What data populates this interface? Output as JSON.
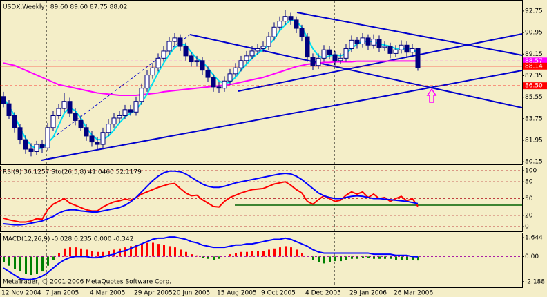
{
  "chart_data": [
    {
      "type": "candlestick",
      "title": "USDX,Weekly",
      "legend_text": "89.60 89.60 87.75 88.02",
      "ylim": [
        79.93,
        93.61
      ],
      "yticks": [
        92.75,
        90.95,
        89.15,
        87.35,
        85.55,
        83.75,
        81.95,
        80.15
      ],
      "grid": false,
      "up_color": "#ffffff",
      "down_color": "#000080",
      "outline_color": "#000080",
      "open": [
        85.6,
        85.0,
        84.0,
        83.0,
        82.0,
        81.2,
        81.0,
        81.6,
        81.3,
        83.0,
        84.0,
        84.6,
        85.2,
        84.2,
        83.6,
        83.0,
        82.3,
        81.8,
        81.6,
        82.6,
        83.3,
        83.8,
        84.0,
        84.5,
        84.3,
        85.2,
        86.3,
        87.4,
        88.0,
        88.8,
        89.4,
        90.2,
        90.5,
        89.8,
        89.0,
        88.5,
        88.6,
        87.8,
        87.2,
        86.4,
        86.3,
        86.9,
        87.5,
        88.0,
        88.6,
        89.0,
        89.4,
        89.6,
        89.8,
        90.6,
        91.4,
        91.9,
        92.3,
        92.0,
        91.3,
        90.6,
        88.9,
        88.2,
        88.8,
        89.5,
        89.1,
        88.6,
        88.8,
        89.6,
        90.3,
        90.0,
        90.5,
        89.9,
        90.4,
        89.7,
        89.8,
        89.2,
        89.5,
        89.9,
        89.3,
        89.6
      ],
      "high": [
        86.0,
        85.3,
        84.3,
        83.3,
        82.4,
        81.7,
        81.9,
        82.0,
        83.4,
        84.4,
        85.0,
        85.9,
        85.5,
        84.6,
        84.0,
        83.3,
        82.7,
        82.2,
        83.0,
        83.7,
        84.2,
        84.4,
        84.9,
        84.9,
        85.6,
        86.7,
        87.8,
        88.4,
        89.2,
        89.8,
        90.6,
        90.9,
        90.8,
        90.1,
        89.3,
        89.0,
        88.9,
        88.1,
        87.5,
        86.8,
        87.3,
        87.9,
        88.4,
        89.0,
        89.4,
        89.8,
        90.0,
        90.2,
        91.0,
        91.8,
        92.3,
        92.8,
        92.6,
        92.3,
        91.6,
        90.9,
        89.2,
        89.2,
        89.9,
        89.8,
        89.4,
        89.2,
        90.0,
        90.7,
        90.6,
        90.9,
        90.8,
        90.8,
        90.7,
        90.2,
        90.1,
        89.9,
        90.3,
        90.2,
        90.0,
        89.6
      ],
      "low": [
        84.7,
        83.7,
        82.6,
        81.6,
        80.8,
        80.6,
        80.7,
        80.9,
        81.1,
        82.7,
        83.7,
        84.3,
        83.9,
        83.2,
        82.7,
        81.9,
        81.4,
        81.2,
        81.3,
        82.3,
        83.0,
        83.4,
        83.7,
        84.0,
        84.0,
        84.9,
        86.0,
        87.1,
        87.7,
        88.5,
        89.1,
        89.8,
        89.4,
        88.6,
        88.1,
        88.1,
        87.4,
        86.8,
        86.0,
        85.9,
        86.0,
        86.6,
        87.2,
        87.7,
        88.3,
        88.7,
        89.1,
        89.3,
        89.5,
        90.3,
        91.1,
        91.6,
        91.6,
        90.9,
        90.2,
        88.5,
        87.8,
        87.9,
        88.5,
        88.7,
        88.2,
        88.3,
        88.5,
        89.3,
        89.6,
        89.7,
        89.5,
        89.6,
        89.3,
        89.4,
        88.8,
        88.9,
        89.2,
        88.9,
        89.0,
        87.75
      ],
      "close": [
        85.0,
        84.0,
        83.0,
        82.0,
        81.2,
        81.0,
        81.6,
        81.3,
        83.0,
        84.0,
        84.6,
        85.2,
        84.2,
        83.6,
        83.0,
        82.3,
        81.8,
        81.6,
        82.6,
        83.3,
        83.8,
        84.0,
        84.5,
        84.3,
        85.2,
        86.3,
        87.4,
        88.0,
        88.8,
        89.4,
        90.2,
        90.5,
        89.8,
        89.0,
        88.5,
        88.6,
        87.8,
        87.2,
        86.4,
        86.3,
        86.9,
        87.5,
        88.0,
        88.6,
        89.0,
        89.4,
        89.6,
        89.8,
        90.6,
        91.4,
        91.9,
        92.3,
        92.0,
        91.3,
        90.6,
        88.9,
        88.2,
        88.8,
        89.5,
        89.1,
        88.6,
        88.8,
        89.6,
        90.3,
        90.0,
        90.5,
        89.9,
        90.4,
        89.7,
        89.8,
        89.2,
        89.5,
        89.9,
        89.3,
        89.6,
        88.02
      ],
      "lines": [
        {
          "color": "#ff00ff",
          "values": [
            88.4,
            88.3,
            88.2,
            88.0,
            87.8,
            87.6,
            87.4,
            87.2,
            87.0,
            86.8,
            86.6,
            86.5,
            86.4,
            86.3,
            86.2,
            86.1,
            86.0,
            85.9,
            85.85,
            85.8,
            85.75,
            85.7,
            85.7,
            85.7,
            85.7,
            85.75,
            85.8,
            85.85,
            85.9,
            86.0,
            86.05,
            86.1,
            86.15,
            86.2,
            86.25,
            86.3,
            86.35,
            86.4,
            86.45,
            86.5,
            86.55,
            86.6,
            86.7,
            86.8,
            86.9,
            87.0,
            87.1,
            87.2,
            87.35,
            87.5,
            87.65,
            87.8,
            87.95,
            88.1,
            88.2,
            88.3,
            88.35,
            88.4,
            88.45,
            88.45,
            88.5,
            88.5,
            88.5,
            88.5,
            88.55,
            88.55,
            88.55,
            88.55,
            88.55,
            88.55,
            88.57,
            88.57,
            88.57,
            88.57,
            88.57,
            88.57
          ]
        },
        {
          "color": "#00e0f0",
          "values": [
            85.5,
            84.8,
            84.0,
            83.0,
            82.1,
            81.5,
            81.2,
            81.3,
            81.7,
            82.2,
            83.2,
            84.2,
            84.7,
            84.4,
            83.8,
            83.0,
            82.4,
            82.0,
            82.0,
            82.3,
            82.8,
            83.4,
            83.9,
            84.2,
            84.5,
            85.1,
            85.8,
            86.7,
            87.6,
            88.4,
            89.1,
            89.7,
            90.0,
            89.9,
            89.3,
            88.8,
            88.5,
            88.0,
            87.4,
            86.9,
            86.7,
            86.8,
            87.2,
            87.8,
            88.3,
            88.8,
            89.2,
            89.5,
            89.9,
            90.4,
            91.1,
            91.6,
            92.0,
            91.9,
            91.4,
            90.5,
            89.6,
            89.0,
            88.8,
            89.0,
            89.1,
            89.0,
            89.2,
            89.6,
            90.0,
            90.2,
            90.2,
            90.2,
            90.0,
            89.9,
            89.8,
            89.6,
            89.6,
            89.6,
            89.6,
            89.2
          ]
        }
      ],
      "levels": [
        {
          "value": 88.57,
          "color": "#ff00ff",
          "style": "dashed"
        },
        {
          "value": 88.14,
          "color": "#ff0000",
          "style": "solid"
        },
        {
          "value": 86.5,
          "label": "86.50",
          "color": "#ff0000",
          "style": "dashed"
        }
      ]
    },
    {
      "type": "line",
      "title": "RSI(9) 36.1257 Sto(26,5,8) 41.0460 52.1179",
      "ylim": [
        -8.6,
        108.6
      ],
      "yticks": [
        0,
        20,
        50,
        80,
        100
      ],
      "grid": true,
      "series": [
        {
          "color": "#ff0000",
          "values": [
            15,
            12,
            10,
            8,
            8,
            10,
            14,
            13,
            30,
            40,
            45,
            50,
            42,
            38,
            34,
            30,
            28,
            28,
            35,
            40,
            44,
            46,
            49,
            47,
            52,
            58,
            62,
            66,
            70,
            73,
            76,
            77,
            68,
            60,
            55,
            56,
            48,
            42,
            36,
            35,
            45,
            52,
            56,
            60,
            63,
            66,
            67,
            68,
            72,
            76,
            78,
            80,
            74,
            66,
            60,
            45,
            40,
            48,
            55,
            50,
            45,
            47,
            56,
            62,
            58,
            62,
            52,
            58,
            50,
            52,
            45,
            50,
            54,
            46,
            50,
            36.13
          ]
        },
        {
          "color": "#0000ff",
          "values": [
            5,
            4,
            3,
            3,
            4,
            6,
            8,
            10,
            14,
            18,
            24,
            28,
            30,
            30,
            28,
            27,
            26,
            26,
            28,
            30,
            32,
            34,
            38,
            44,
            52,
            62,
            72,
            82,
            90,
            96,
            99,
            99,
            98,
            94,
            88,
            82,
            76,
            72,
            70,
            70,
            72,
            75,
            78,
            80,
            82,
            84,
            86,
            88,
            90,
            92,
            94,
            95,
            94,
            90,
            84,
            76,
            68,
            60,
            55,
            52,
            50,
            50,
            52,
            54,
            55,
            54,
            52,
            50,
            50,
            49,
            48,
            47,
            46,
            45,
            43,
            41.05
          ]
        }
      ]
    },
    {
      "type": "macd",
      "title": "MACD(12,26,9) -0.028 0.235 0.000 -0.342",
      "ylim": [
        -2.68,
        2.07
      ],
      "yticks": [
        1.644,
        {
          "value": 0,
          "label": "0.00"
        },
        -2.188
      ],
      "grid": false,
      "positive_color": "#ff0000",
      "negative_color": "#008000",
      "histogram": [
        -0.5,
        -0.8,
        -1.1,
        -1.3,
        -1.5,
        -1.6,
        -1.5,
        -1.3,
        -0.8,
        -0.3,
        0.3,
        0.7,
        0.8,
        0.8,
        0.7,
        0.6,
        0.5,
        0.4,
        0.4,
        0.5,
        0.6,
        0.7,
        0.8,
        0.9,
        1.0,
        1.1,
        1.2,
        1.2,
        1.1,
        1.0,
        0.9,
        0.8,
        0.6,
        0.4,
        0.2,
        0.1,
        -0.1,
        -0.2,
        -0.3,
        -0.2,
        0.0,
        0.2,
        0.3,
        0.4,
        0.4,
        0.5,
        0.5,
        0.5,
        0.6,
        0.7,
        0.8,
        0.9,
        0.8,
        0.6,
        0.3,
        0.0,
        -0.3,
        -0.5,
        -0.6,
        -0.5,
        -0.4,
        -0.4,
        -0.3,
        -0.2,
        -0.2,
        -0.1,
        -0.1,
        -0.2,
        -0.2,
        -0.2,
        -0.2,
        -0.3,
        -0.3,
        -0.3,
        -0.3,
        -0.342
      ],
      "series": [
        {
          "color": "#0000ff",
          "values": [
            -1.0,
            -1.3,
            -1.6,
            -1.9,
            -2.0,
            -2.0,
            -1.9,
            -1.7,
            -1.4,
            -1.0,
            -0.6,
            -0.3,
            -0.1,
            0.0,
            0.0,
            0.0,
            -0.1,
            -0.1,
            0.0,
            0.1,
            0.2,
            0.4,
            0.5,
            0.7,
            0.9,
            1.1,
            1.3,
            1.5,
            1.6,
            1.6,
            1.7,
            1.7,
            1.6,
            1.5,
            1.3,
            1.2,
            1.0,
            0.9,
            0.8,
            0.8,
            0.8,
            0.9,
            1.0,
            1.0,
            1.1,
            1.1,
            1.2,
            1.3,
            1.4,
            1.5,
            1.5,
            1.6,
            1.5,
            1.3,
            1.1,
            0.9,
            0.6,
            0.4,
            0.3,
            0.3,
            0.3,
            0.3,
            0.3,
            0.3,
            0.3,
            0.3,
            0.3,
            0.2,
            0.2,
            0.2,
            0.2,
            0.1,
            0.1,
            0.1,
            0.0,
            -0.03
          ]
        }
      ],
      "categories": [
        "12 Nov 2004",
        null,
        null,
        null,
        null,
        null,
        null,
        null,
        "7 Jan 2005",
        null,
        null,
        null,
        null,
        null,
        null,
        null,
        "4 Mar 2005",
        null,
        null,
        null,
        null,
        null,
        null,
        null,
        "29 Apr 2005",
        null,
        null,
        null,
        null,
        null,
        null,
        "20 Jun 2005",
        null,
        null,
        null,
        null,
        null,
        null,
        null,
        "15 Aug 2005",
        null,
        null,
        null,
        null,
        null,
        null,
        null,
        "9 Oct 2005",
        null,
        null,
        null,
        null,
        null,
        null,
        null,
        "4 Dec 2005",
        null,
        null,
        null,
        null,
        null,
        null,
        null,
        "29 Jan 2006",
        null,
        null,
        null,
        null,
        null,
        null,
        null,
        "26 Mar 2006",
        null,
        null,
        null,
        null
      ]
    }
  ],
  "footer": "MetaTrader, © 2001-2006 MetaQuotes Software Corp."
}
